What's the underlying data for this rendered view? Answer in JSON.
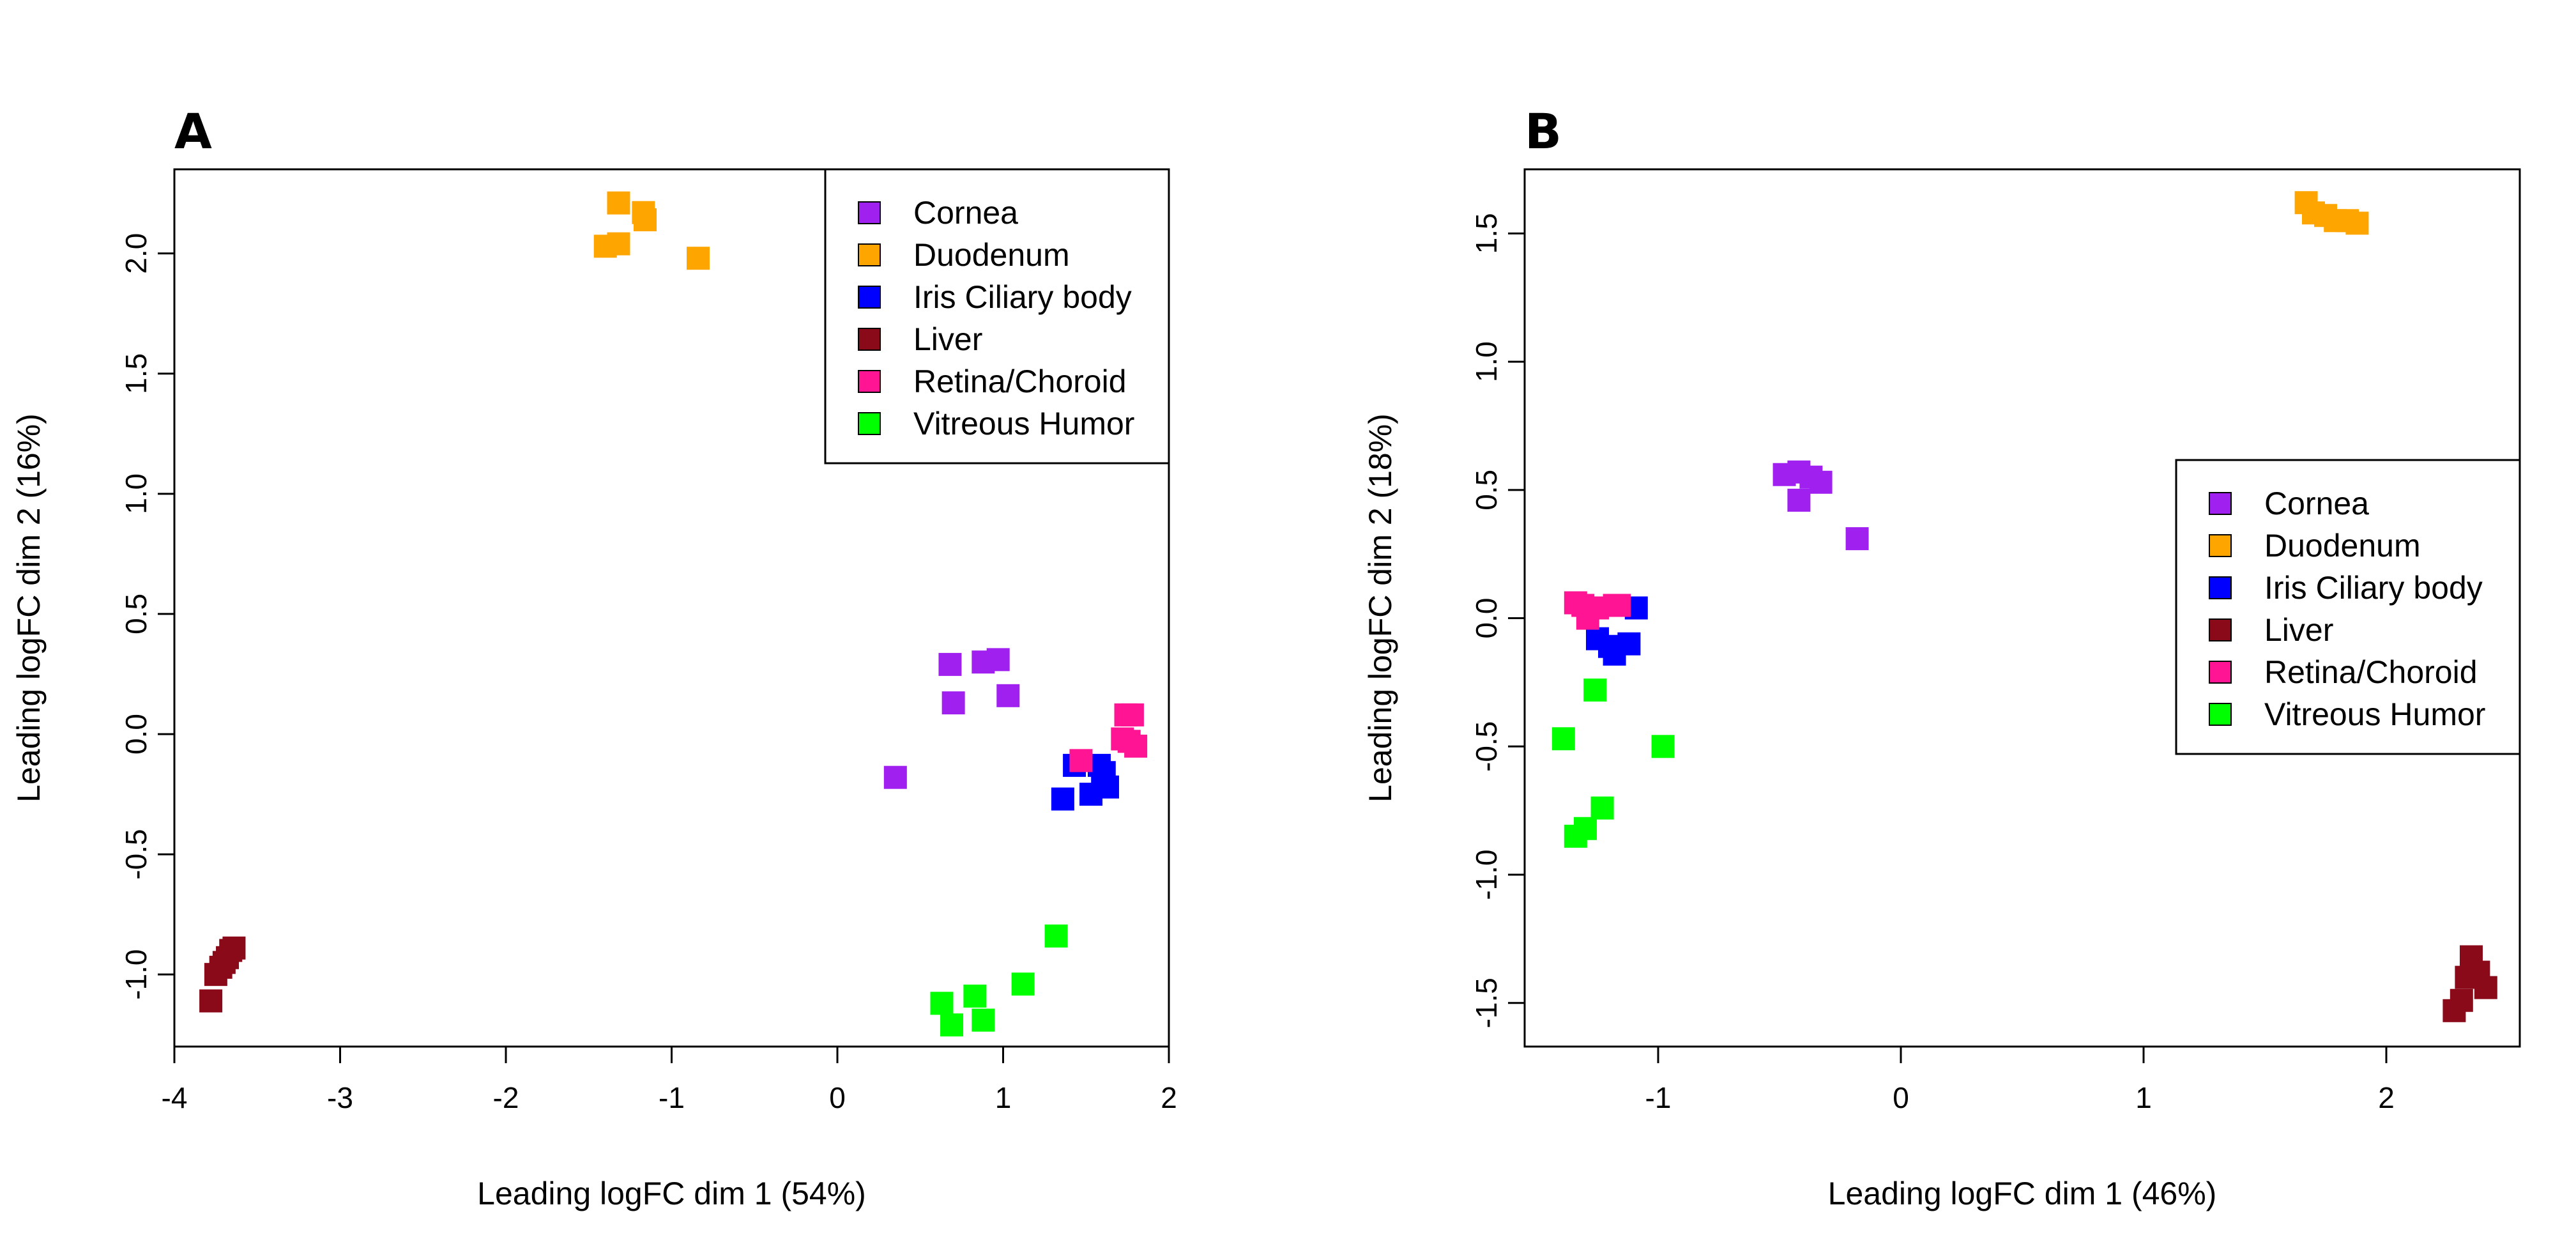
{
  "colors": {
    "Cornea": "#A020F0",
    "Duodenum": "#FFA500",
    "Iris Ciliary body": "#0000FF",
    "Liver": "#8B0A1A",
    "Retina/Choroid": "#FF1493",
    "Vitreous Humor": "#00FF00"
  },
  "chart_data": [
    {
      "type": "scatter",
      "panel_label": "A",
      "title": "",
      "xlabel": "Leading logFC dim 1 (54%)",
      "ylabel": "Leading logFC dim 2 (16%)",
      "xlim": [
        -4,
        2
      ],
      "ylim": [
        -1.3,
        2.35
      ],
      "xticks": [
        "-4",
        "-3",
        "-2",
        "-1",
        "0",
        "1",
        "2"
      ],
      "yticks": [
        "-1.0",
        "-0.5",
        "0.0",
        "0.5",
        "1.0",
        "1.5",
        "2.0"
      ],
      "legend_position": "top-right",
      "legend": [
        "Cornea",
        "Duodenum",
        "Iris Ciliary body",
        "Liver",
        "Retina/Choroid",
        "Vitreous Humor"
      ],
      "series": [
        {
          "name": "Cornea",
          "x": [
            0.35,
            0.68,
            0.7,
            0.88,
            0.97,
            1.03
          ],
          "y": [
            -0.18,
            0.29,
            0.13,
            0.3,
            0.31,
            0.16
          ]
        },
        {
          "name": "Duodenum",
          "x": [
            -1.4,
            -1.32,
            -1.32,
            -1.17,
            -1.16,
            -0.84
          ],
          "y": [
            2.03,
            2.04,
            2.21,
            2.17,
            2.14,
            1.98
          ]
        },
        {
          "name": "Iris Ciliary body",
          "x": [
            1.36,
            1.43,
            1.53,
            1.58,
            1.6,
            1.61,
            1.63
          ],
          "y": [
            -0.27,
            -0.13,
            -0.25,
            -0.13,
            -0.2,
            -0.16,
            -0.22
          ]
        },
        {
          "name": "Liver",
          "x": [
            -3.78,
            -3.75,
            -3.72,
            -3.7,
            -3.68,
            -3.66,
            -3.64
          ],
          "y": [
            -1.11,
            -1.0,
            -0.97,
            -0.95,
            -0.93,
            -0.9,
            -0.89
          ]
        },
        {
          "name": "Retina/Choroid",
          "x": [
            1.47,
            1.72,
            1.74,
            1.76,
            1.78,
            1.8
          ],
          "y": [
            -0.11,
            -0.02,
            0.08,
            -0.03,
            0.08,
            -0.05
          ]
        },
        {
          "name": "Vitreous Humor",
          "x": [
            0.63,
            0.69,
            0.83,
            0.88,
            1.12,
            1.32
          ],
          "y": [
            -1.12,
            -1.21,
            -1.09,
            -1.19,
            -1.04,
            -0.84
          ]
        }
      ]
    },
    {
      "type": "scatter",
      "panel_label": "B",
      "title": "",
      "xlabel": "Leading logFC dim 1 (46%)",
      "ylabel": "Leading logFC dim 2 (18%)",
      "xlim": [
        -1.55,
        2.55
      ],
      "ylim": [
        -1.67,
        1.75
      ],
      "xticks": [
        "-1",
        "0",
        "1",
        "2"
      ],
      "yticks": [
        "-1.5",
        "-1.0",
        "-0.5",
        "0.0",
        "0.5",
        "1.0",
        "1.5"
      ],
      "legend_position": "right",
      "legend": [
        "Cornea",
        "Duodenum",
        "Iris Ciliary body",
        "Liver",
        "Retina/Choroid",
        "Vitreous Humor"
      ],
      "series": [
        {
          "name": "Cornea",
          "x": [
            -0.48,
            -0.42,
            -0.42,
            -0.37,
            -0.33,
            -0.18
          ],
          "y": [
            0.56,
            0.57,
            0.46,
            0.55,
            0.53,
            0.31
          ]
        },
        {
          "name": "Duodenum",
          "x": [
            1.67,
            1.7,
            1.75,
            1.79,
            1.84,
            1.88
          ],
          "y": [
            1.62,
            1.58,
            1.57,
            1.55,
            1.55,
            1.54
          ]
        },
        {
          "name": "Iris Ciliary body",
          "x": [
            -1.25,
            -1.2,
            -1.18,
            -1.12,
            -1.09
          ],
          "y": [
            -0.08,
            -0.11,
            -0.14,
            -0.1,
            0.04
          ]
        },
        {
          "name": "Liver",
          "x": [
            2.28,
            2.31,
            2.33,
            2.35,
            2.38,
            2.41
          ],
          "y": [
            -1.53,
            -1.49,
            -1.4,
            -1.32,
            -1.38,
            -1.44
          ]
        },
        {
          "name": "Retina/Choroid",
          "x": [
            -1.34,
            -1.31,
            -1.29,
            -1.25,
            -1.18,
            -1.16
          ],
          "y": [
            0.06,
            0.05,
            0.0,
            0.04,
            0.05,
            0.05
          ]
        },
        {
          "name": "Vitreous Humor",
          "x": [
            -1.39,
            -1.34,
            -1.3,
            -1.26,
            -1.23,
            -0.98
          ],
          "y": [
            -0.47,
            -0.85,
            -0.82,
            -0.28,
            -0.74,
            -0.5
          ]
        }
      ]
    }
  ]
}
